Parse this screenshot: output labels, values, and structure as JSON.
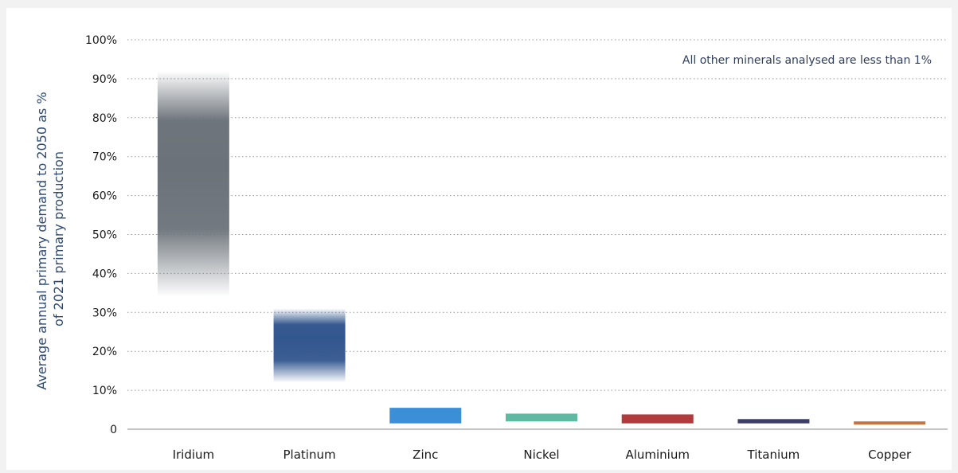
{
  "chart_data": {
    "type": "bar",
    "subtype": "floating-range",
    "ylabel_lines": [
      "Average annual primary demand to 2050 as %",
      "of 2021 primary production"
    ],
    "xlabel": "",
    "ylim": [
      0,
      100
    ],
    "yticks": [
      {
        "value": 0,
        "label": "0"
      },
      {
        "value": 10,
        "label": "10%"
      },
      {
        "value": 20,
        "label": "20%"
      },
      {
        "value": 30,
        "label": "30%"
      },
      {
        "value": 40,
        "label": "40%"
      },
      {
        "value": 50,
        "label": "50%"
      },
      {
        "value": 60,
        "label": "60%"
      },
      {
        "value": 70,
        "label": "70%"
      },
      {
        "value": 80,
        "label": "80%"
      },
      {
        "value": 90,
        "label": "90%"
      },
      {
        "value": 100,
        "label": "100%"
      }
    ],
    "grid": "horizontal-dotted",
    "annotation": "All other minerals analysed are less than 1%",
    "categories": [
      "Iridium",
      "Platinum",
      "Zinc",
      "Nickel",
      "Aluminium",
      "Titanium",
      "Copper"
    ],
    "ranges": [
      {
        "category": "Iridium",
        "low": 34,
        "high": 92,
        "color": "#6b7279",
        "fuzzy": true
      },
      {
        "category": "Platinum",
        "low": 12,
        "high": 31,
        "color": "#32568e",
        "fuzzy": true
      },
      {
        "category": "Zinc",
        "low": 1.5,
        "high": 5.5,
        "color": "#3a8fd6",
        "fuzzy": false
      },
      {
        "category": "Nickel",
        "low": 2,
        "high": 4,
        "color": "#5fb9a0",
        "fuzzy": false
      },
      {
        "category": "Aluminium",
        "low": 1.5,
        "high": 3.8,
        "color": "#b03a3c",
        "fuzzy": false
      },
      {
        "category": "Titanium",
        "low": 1.5,
        "high": 2.6,
        "color": "#3e3f68",
        "fuzzy": false
      },
      {
        "category": "Copper",
        "low": 1.2,
        "high": 2,
        "color": "#c9713f",
        "fuzzy": false
      }
    ]
  }
}
